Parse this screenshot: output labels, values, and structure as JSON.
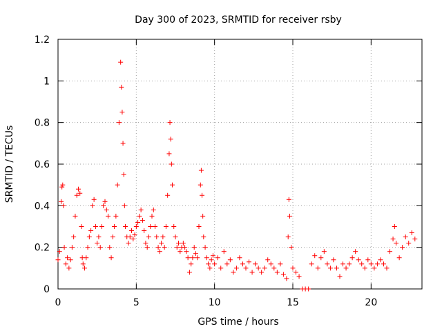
{
  "chart_data": {
    "type": "scatter",
    "title": "Day 300 of 2023, SRMTID for receiver rsby",
    "xlabel": "GPS time / hours",
    "ylabel": "SRMTID / TECUs",
    "xlim": [
      0,
      23.25
    ],
    "ylim": [
      0,
      1.2
    ],
    "xticks": [
      0,
      5,
      10,
      15,
      20
    ],
    "xtick_labels": [
      "0",
      "5",
      "10",
      "15",
      "20"
    ],
    "yticks": [
      0,
      0.2,
      0.4,
      0.6,
      0.8,
      1.0,
      1.2
    ],
    "ytick_labels": [
      "0",
      "0.2",
      "0.4",
      "0.6",
      "0.8",
      "1",
      "1.2"
    ],
    "grid": true,
    "marker": "+",
    "color": "#ff0000",
    "series": [
      {
        "name": "SRMTID",
        "x": [
          0.0,
          0.1,
          0.2,
          0.25,
          0.3,
          0.35,
          0.4,
          0.5,
          0.6,
          0.7,
          0.8,
          0.9,
          1.0,
          1.1,
          1.2,
          1.3,
          1.4,
          1.5,
          1.55,
          1.6,
          1.7,
          1.8,
          1.9,
          2.0,
          2.1,
          2.2,
          2.3,
          2.4,
          2.5,
          2.6,
          2.7,
          2.8,
          2.9,
          3.0,
          3.1,
          3.2,
          3.3,
          3.4,
          3.5,
          3.6,
          3.7,
          3.8,
          3.9,
          4.0,
          4.05,
          4.1,
          4.15,
          4.2,
          4.25,
          4.3,
          4.4,
          4.5,
          4.6,
          4.7,
          4.8,
          4.9,
          5.0,
          5.1,
          5.2,
          5.3,
          5.4,
          5.5,
          5.6,
          5.7,
          5.8,
          5.9,
          6.0,
          6.1,
          6.2,
          6.3,
          6.4,
          6.5,
          6.6,
          6.7,
          6.8,
          6.9,
          7.0,
          7.1,
          7.15,
          7.2,
          7.25,
          7.3,
          7.4,
          7.5,
          7.6,
          7.7,
          7.8,
          7.9,
          8.0,
          8.1,
          8.2,
          8.3,
          8.4,
          8.5,
          8.6,
          8.7,
          8.8,
          8.9,
          9.0,
          9.1,
          9.15,
          9.2,
          9.25,
          9.3,
          9.4,
          9.5,
          9.6,
          9.7,
          9.8,
          9.9,
          10.0,
          10.2,
          10.4,
          10.6,
          10.8,
          11.0,
          11.2,
          11.4,
          11.6,
          11.8,
          12.0,
          12.2,
          12.4,
          12.6,
          12.8,
          13.0,
          13.2,
          13.4,
          13.6,
          13.8,
          14.0,
          14.2,
          14.4,
          14.6,
          14.7,
          14.75,
          14.8,
          14.9,
          15.0,
          15.2,
          15.4,
          15.6,
          15.8,
          16.0,
          16.2,
          16.4,
          16.6,
          16.8,
          17.0,
          17.2,
          17.4,
          17.6,
          17.8,
          18.0,
          18.2,
          18.4,
          18.6,
          18.8,
          19.0,
          19.2,
          19.4,
          19.6,
          19.8,
          20.0,
          20.2,
          20.4,
          20.6,
          20.8,
          21.0,
          21.2,
          21.4,
          21.5,
          21.6,
          21.8,
          22.0,
          22.2,
          22.4,
          22.6,
          22.8
        ],
        "y": [
          0.14,
          0.18,
          0.42,
          0.49,
          0.5,
          0.4,
          0.2,
          0.12,
          0.15,
          0.1,
          0.14,
          0.2,
          0.25,
          0.35,
          0.45,
          0.48,
          0.46,
          0.3,
          0.15,
          0.12,
          0.1,
          0.15,
          0.2,
          0.25,
          0.28,
          0.4,
          0.43,
          0.3,
          0.22,
          0.25,
          0.2,
          0.3,
          0.4,
          0.42,
          0.38,
          0.35,
          0.2,
          0.15,
          0.25,
          0.3,
          0.35,
          0.5,
          0.8,
          1.09,
          0.97,
          0.85,
          0.7,
          0.55,
          0.4,
          0.3,
          0.25,
          0.22,
          0.25,
          0.28,
          0.24,
          0.26,
          0.3,
          0.32,
          0.35,
          0.38,
          0.33,
          0.28,
          0.22,
          0.2,
          0.25,
          0.3,
          0.35,
          0.38,
          0.3,
          0.25,
          0.2,
          0.18,
          0.22,
          0.25,
          0.2,
          0.3,
          0.45,
          0.65,
          0.8,
          0.72,
          0.6,
          0.5,
          0.3,
          0.25,
          0.2,
          0.22,
          0.18,
          0.2,
          0.22,
          0.2,
          0.18,
          0.15,
          0.08,
          0.12,
          0.15,
          0.2,
          0.17,
          0.15,
          0.3,
          0.5,
          0.57,
          0.45,
          0.35,
          0.25,
          0.2,
          0.15,
          0.12,
          0.1,
          0.14,
          0.16,
          0.12,
          0.15,
          0.1,
          0.18,
          0.12,
          0.14,
          0.08,
          0.1,
          0.15,
          0.12,
          0.1,
          0.13,
          0.08,
          0.12,
          0.1,
          0.08,
          0.1,
          0.14,
          0.12,
          0.1,
          0.08,
          0.12,
          0.07,
          0.05,
          0.25,
          0.43,
          0.35,
          0.2,
          0.1,
          0.08,
          0.06,
          0.0,
          0.0,
          0.0,
          0.12,
          0.16,
          0.1,
          0.15,
          0.18,
          0.12,
          0.1,
          0.14,
          0.1,
          0.06,
          0.12,
          0.1,
          0.12,
          0.15,
          0.18,
          0.14,
          0.12,
          0.1,
          0.14,
          0.12,
          0.1,
          0.12,
          0.14,
          0.12,
          0.1,
          0.18,
          0.24,
          0.3,
          0.22,
          0.15,
          0.2,
          0.25,
          0.22,
          0.27,
          0.24
        ]
      }
    ]
  }
}
